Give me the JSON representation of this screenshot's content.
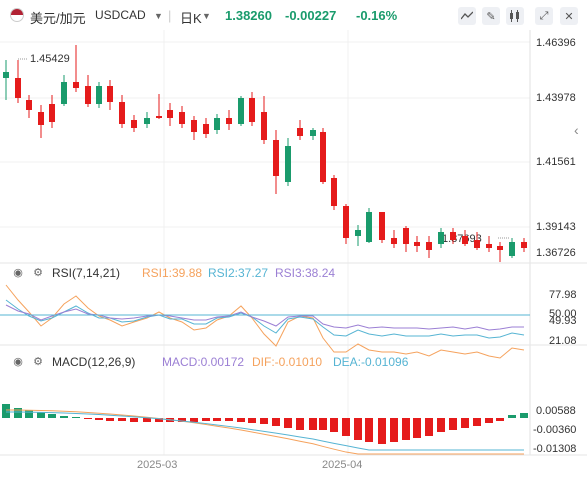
{
  "header": {
    "pair_cn": "美元/加元",
    "symbol": "USDCAD",
    "interval": "日K",
    "price": "1.38260",
    "change": "-0.00227",
    "change_pct": "-0.16%"
  },
  "price_axis": [
    "1.46396",
    "1.43978",
    "1.41561",
    "1.39143",
    "1.36726"
  ],
  "annotations": {
    "high": "1.45429",
    "low": "1.37693"
  },
  "rsi": {
    "title": "RSI(7,14,21)",
    "rsi1": "RSI1:39.88",
    "rsi2": "RSI2:37.27",
    "rsi3": "RSI3:38.24",
    "axis": [
      "77.98",
      "50.00",
      "49.93",
      "21.08"
    ]
  },
  "macd": {
    "title": "MACD(12,26,9)",
    "macd": "MACD:0.00172",
    "dif": "DIF:-0.01010",
    "dea": "DEA:-0.01096",
    "axis": [
      "0.00588",
      "-0.00360",
      "-0.01308"
    ]
  },
  "x_labels": [
    "2025-03",
    "2025-04"
  ],
  "colors": {
    "up": "#1a9b6c",
    "down": "#e51b1b",
    "rsi1": "#f5a25d",
    "rsi2": "#56b4d3",
    "rsi3": "#9b7fd4"
  },
  "icons": [
    "line-chart-icon",
    "draw-icon",
    "candle-type-icon",
    "fullscreen-icon",
    "close-icon",
    "collapse-arrow-icon",
    "eye-icon",
    "settings-icon"
  ]
}
